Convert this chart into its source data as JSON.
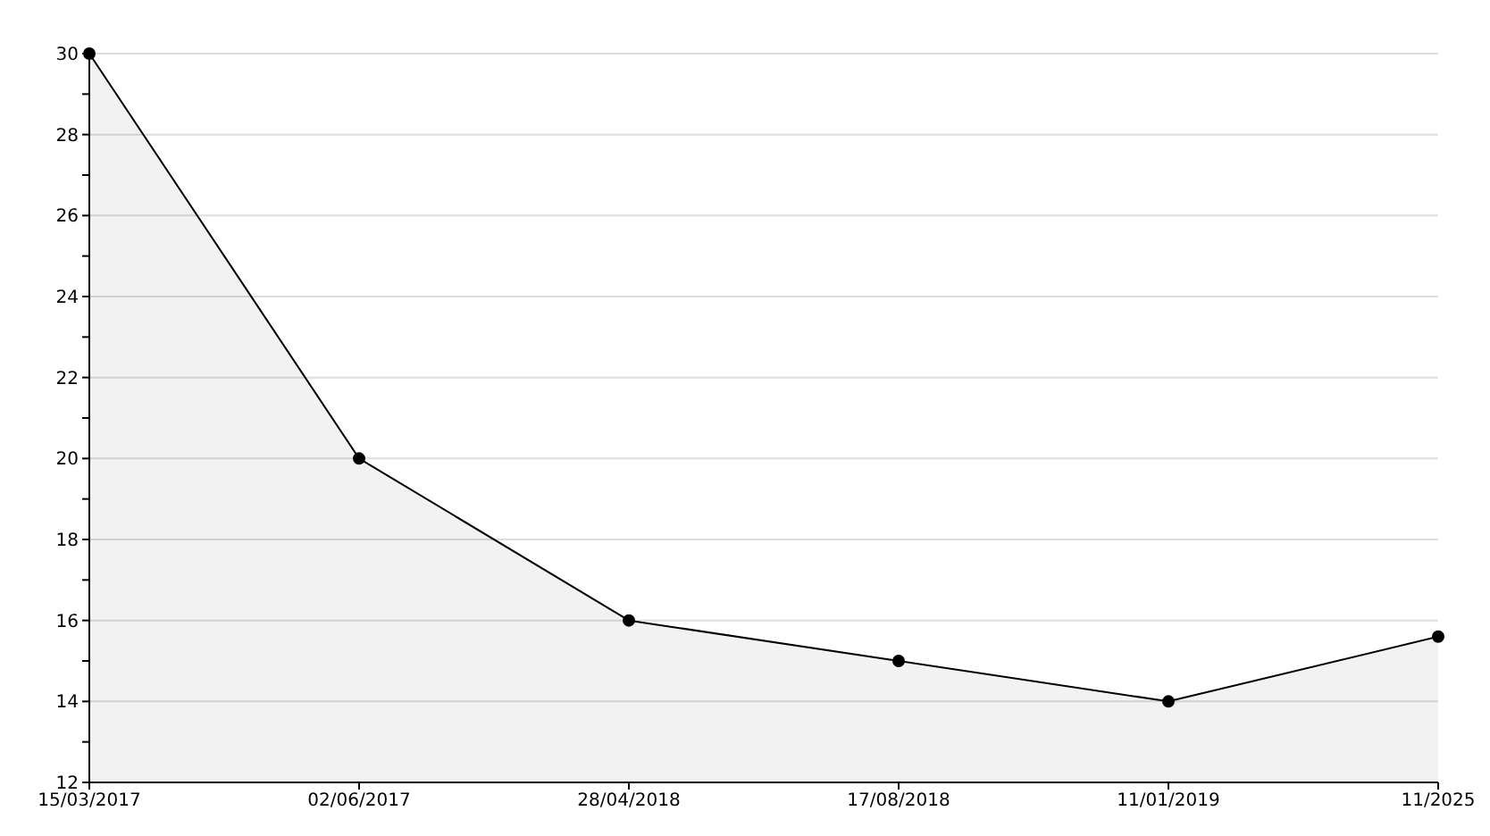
{
  "chart_data": {
    "type": "area",
    "categories": [
      "15/03/2017",
      "02/06/2017",
      "28/04/2018",
      "17/08/2018",
      "11/01/2019",
      "11/2025"
    ],
    "series": [
      {
        "color": "#000000",
        "values": [
          30,
          20,
          16,
          15,
          14,
          15.6
        ]
      }
    ],
    "ylim": [
      12,
      30
    ],
    "yticks": [
      12,
      {
        "value": 13,
        "label": null
      },
      14,
      {
        "value": 15,
        "label": null
      },
      16,
      {
        "value": 17,
        "label": null
      },
      18,
      {
        "value": 19,
        "label": null
      },
      20,
      {
        "value": 21,
        "label": null
      },
      22,
      {
        "value": 23,
        "label": null
      },
      24,
      {
        "value": 25,
        "label": null
      },
      26,
      {
        "value": 27,
        "label": null
      },
      28,
      {
        "value": 29,
        "label": null
      },
      30
    ],
    "grid": "y",
    "marker": "circle"
  }
}
